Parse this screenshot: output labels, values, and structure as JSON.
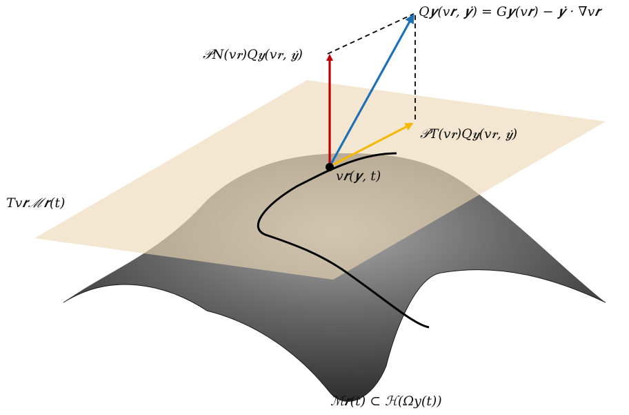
{
  "labels": {
    "q_vector": "Q𝒚(v𝒓, 𝒚̇) = G𝒚(v𝒓) − 𝒚̇ · ∇v𝒓",
    "normal_projection": "𝒫N(v𝒓)Q𝒚(v𝒓, 𝒚̇)",
    "tangent_projection": "𝒫T(v𝒓)Q𝒚(v𝒓, 𝒚̇)",
    "point": "v𝒓(𝒚, t)",
    "tangent_space": "Tv𝒓ℳ𝒓(t)",
    "manifold": "ℳ𝒓(t) ⊂ ℋ(Ωy(t))"
  },
  "colors": {
    "normal_arrow": "#c00000",
    "q_arrow": "#1f6fb5",
    "tangent_arrow": "#f5b800",
    "plane": "#ecd9b4",
    "surface_dark": "#2e2e2e",
    "surface_light": "#9a9a9a",
    "curve": "#000000"
  }
}
